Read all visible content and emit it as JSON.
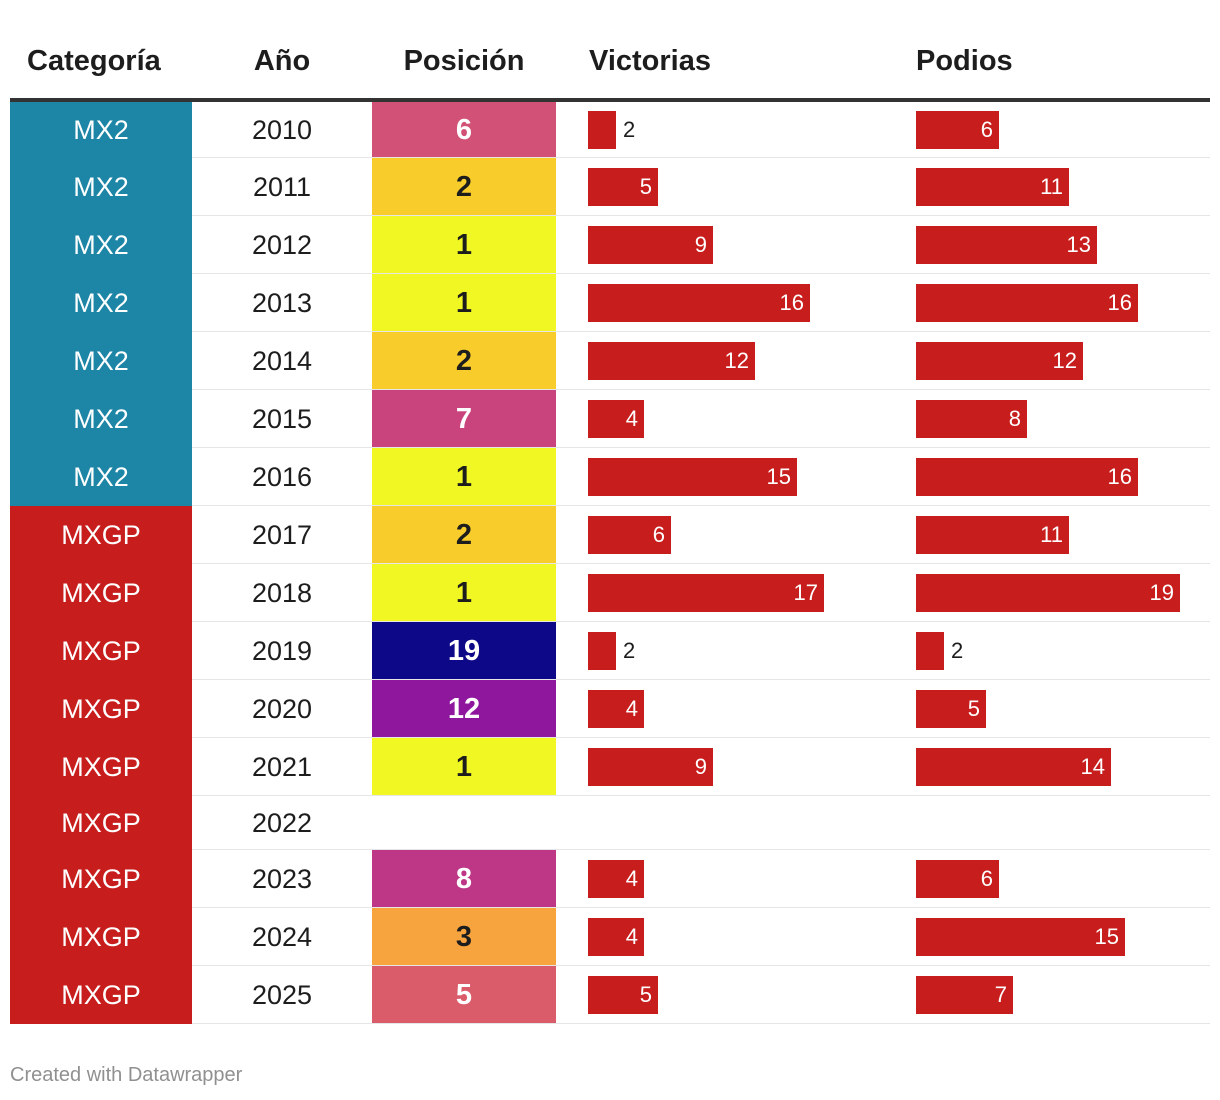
{
  "headers": {
    "category": "Categoría",
    "year": "Año",
    "position": "Posición",
    "wins": "Victorias",
    "podiums": "Podios"
  },
  "colors": {
    "MX2": "#1d86a6",
    "MXGP": "#c71e1d",
    "bar": "#c71e1d"
  },
  "rows": [
    {
      "category": "MX2",
      "year": "2010",
      "position": "6",
      "position_color": "#d25177",
      "position_text_color": "#ffffff",
      "wins": 2,
      "podiums": 6
    },
    {
      "category": "MX2",
      "year": "2011",
      "position": "2",
      "position_color": "#f8cd2b",
      "position_text_color": "#1d1d1d",
      "wins": 5,
      "podiums": 11
    },
    {
      "category": "MX2",
      "year": "2012",
      "position": "1",
      "position_color": "#f1f723",
      "position_text_color": "#1d1d1d",
      "wins": 9,
      "podiums": 13
    },
    {
      "category": "MX2",
      "year": "2013",
      "position": "1",
      "position_color": "#f1f723",
      "position_text_color": "#1d1d1d",
      "wins": 16,
      "podiums": 16
    },
    {
      "category": "MX2",
      "year": "2014",
      "position": "2",
      "position_color": "#f8cd2b",
      "position_text_color": "#1d1d1d",
      "wins": 12,
      "podiums": 12
    },
    {
      "category": "MX2",
      "year": "2015",
      "position": "7",
      "position_color": "#c9447c",
      "position_text_color": "#ffffff",
      "wins": 4,
      "podiums": 8
    },
    {
      "category": "MX2",
      "year": "2016",
      "position": "1",
      "position_color": "#f1f723",
      "position_text_color": "#1d1d1d",
      "wins": 15,
      "podiums": 16
    },
    {
      "category": "MXGP",
      "year": "2017",
      "position": "2",
      "position_color": "#f8cd2b",
      "position_text_color": "#1d1d1d",
      "wins": 6,
      "podiums": 11
    },
    {
      "category": "MXGP",
      "year": "2018",
      "position": "1",
      "position_color": "#f1f723",
      "position_text_color": "#1d1d1d",
      "wins": 17,
      "podiums": 19
    },
    {
      "category": "MXGP",
      "year": "2019",
      "position": "19",
      "position_color": "#0d0887",
      "position_text_color": "#ffffff",
      "wins": 2,
      "podiums": 2
    },
    {
      "category": "MXGP",
      "year": "2020",
      "position": "12",
      "position_color": "#8e179e",
      "position_text_color": "#ffffff",
      "wins": 4,
      "podiums": 5
    },
    {
      "category": "MXGP",
      "year": "2021",
      "position": "1",
      "position_color": "#f1f723",
      "position_text_color": "#1d1d1d",
      "wins": 9,
      "podiums": 14
    },
    {
      "category": "MXGP",
      "year": "2022",
      "position": null,
      "position_color": null,
      "position_text_color": null,
      "wins": null,
      "podiums": null
    },
    {
      "category": "MXGP",
      "year": "2023",
      "position": "8",
      "position_color": "#bd3786",
      "position_text_color": "#ffffff",
      "wins": 4,
      "podiums": 6
    },
    {
      "category": "MXGP",
      "year": "2024",
      "position": "3",
      "position_color": "#f8a43e",
      "position_text_color": "#1d1d1d",
      "wins": 4,
      "podiums": 15
    },
    {
      "category": "MXGP",
      "year": "2025",
      "position": "5",
      "position_color": "#da5b69",
      "position_text_color": "#ffffff",
      "wins": 5,
      "podiums": 7
    }
  ],
  "chart_data": {
    "type": "table",
    "columns": [
      "Categoría",
      "Año",
      "Posición",
      "Victorias",
      "Podios"
    ],
    "categories": [
      "2010",
      "2011",
      "2012",
      "2013",
      "2014",
      "2015",
      "2016",
      "2017",
      "2018",
      "2019",
      "2020",
      "2021",
      "2022",
      "2023",
      "2024",
      "2025"
    ],
    "series": [
      {
        "name": "Posición",
        "values": [
          6,
          2,
          1,
          1,
          2,
          7,
          1,
          2,
          1,
          19,
          12,
          1,
          null,
          8,
          3,
          5
        ]
      },
      {
        "name": "Victorias",
        "values": [
          2,
          5,
          9,
          16,
          12,
          4,
          15,
          6,
          17,
          2,
          4,
          9,
          null,
          4,
          4,
          5
        ]
      },
      {
        "name": "Podios",
        "values": [
          6,
          11,
          13,
          16,
          12,
          8,
          16,
          11,
          19,
          2,
          5,
          14,
          null,
          6,
          15,
          7
        ]
      }
    ],
    "bar_max": 19
  },
  "footer": "Created with Datawrapper"
}
